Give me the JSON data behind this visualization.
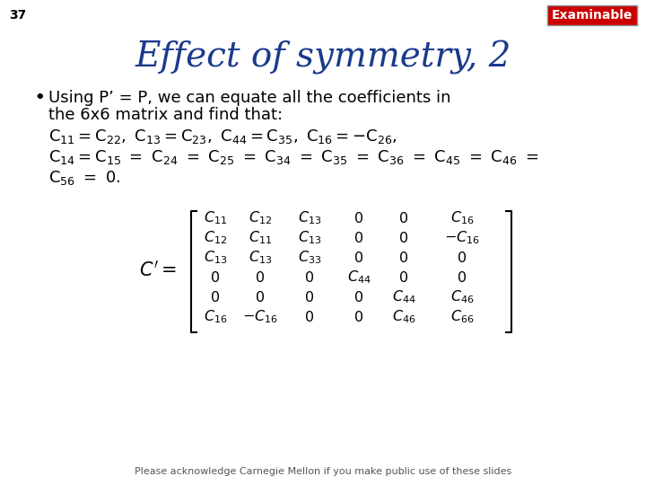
{
  "slide_number": "37",
  "title": "Effect of symmetry, 2",
  "examinable_label": "Examinable",
  "examinable_bg": "#cc0000",
  "examinable_text_color": "#ffffff",
  "background_color": "#ffffff",
  "title_color": "#1a3a8c",
  "body_text_color": "#000000",
  "footer": "Please acknowledge Carnegie Mellon if you make public use of these slides",
  "footer_color": "#555555"
}
